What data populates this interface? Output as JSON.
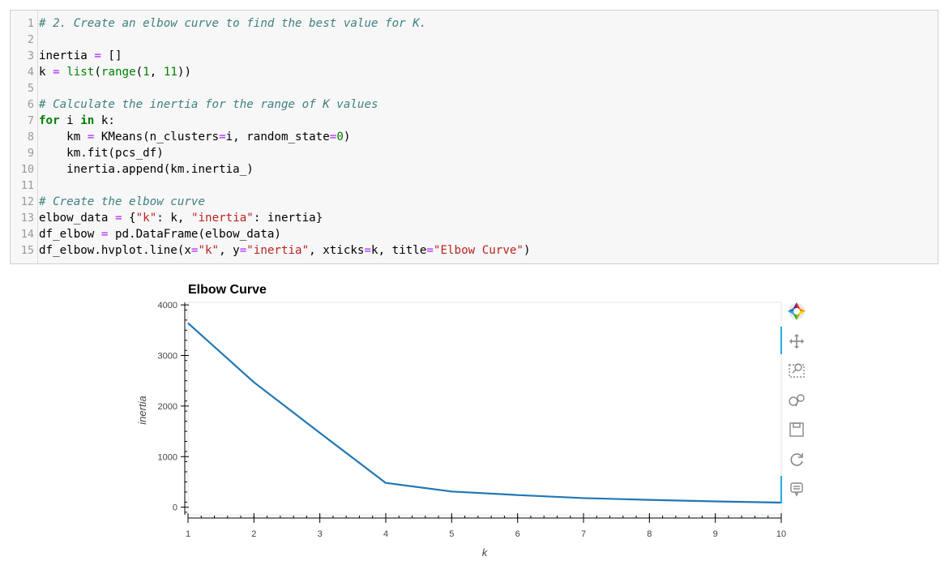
{
  "code": {
    "lines": [
      [
        {
          "t": "# 2. Create an elbow curve to find the best value for K.",
          "c": "cm-comment"
        }
      ],
      [],
      [
        {
          "t": "inertia "
        },
        {
          "t": "=",
          "c": "cm-operator"
        },
        {
          "t": " []"
        }
      ],
      [
        {
          "t": "k "
        },
        {
          "t": "=",
          "c": "cm-operator"
        },
        {
          "t": " "
        },
        {
          "t": "list",
          "c": "cm-builtin"
        },
        {
          "t": "("
        },
        {
          "t": "range",
          "c": "cm-builtin"
        },
        {
          "t": "("
        },
        {
          "t": "1",
          "c": "cm-number"
        },
        {
          "t": ", "
        },
        {
          "t": "11",
          "c": "cm-number"
        },
        {
          "t": "))"
        }
      ],
      [],
      [
        {
          "t": "# Calculate the inertia for the range of K values",
          "c": "cm-comment"
        }
      ],
      [
        {
          "t": "for",
          "c": "cm-keyword"
        },
        {
          "t": " i "
        },
        {
          "t": "in",
          "c": "cm-keyword"
        },
        {
          "t": " k:"
        }
      ],
      [
        {
          "t": "    km "
        },
        {
          "t": "=",
          "c": "cm-operator"
        },
        {
          "t": " KMeans(n_clusters"
        },
        {
          "t": "=",
          "c": "cm-operator"
        },
        {
          "t": "i, random_state"
        },
        {
          "t": "=",
          "c": "cm-operator"
        },
        {
          "t": "0",
          "c": "cm-number"
        },
        {
          "t": ")"
        }
      ],
      [
        {
          "t": "    km.fit(pcs_df)"
        }
      ],
      [
        {
          "t": "    inertia.append(km.inertia_)"
        }
      ],
      [],
      [
        {
          "t": "# Create the elbow curve",
          "c": "cm-comment"
        }
      ],
      [
        {
          "t": "elbow_data "
        },
        {
          "t": "=",
          "c": "cm-operator"
        },
        {
          "t": " {"
        },
        {
          "t": "\"k\"",
          "c": "cm-string"
        },
        {
          "t": ": k, "
        },
        {
          "t": "\"inertia\"",
          "c": "cm-string"
        },
        {
          "t": ": inertia}"
        }
      ],
      [
        {
          "t": "df_elbow "
        },
        {
          "t": "=",
          "c": "cm-operator"
        },
        {
          "t": " pd.DataFrame(elbow_data)"
        }
      ],
      [
        {
          "t": "df_elbow.hvplot.line(x"
        },
        {
          "t": "=",
          "c": "cm-operator"
        },
        {
          "t": "\"k\"",
          "c": "cm-string"
        },
        {
          "t": ", y"
        },
        {
          "t": "=",
          "c": "cm-operator"
        },
        {
          "t": "\"inertia\"",
          "c": "cm-string"
        },
        {
          "t": ", xticks"
        },
        {
          "t": "=",
          "c": "cm-operator"
        },
        {
          "t": "k, title"
        },
        {
          "t": "=",
          "c": "cm-operator"
        },
        {
          "t": "\"Elbow Curve\"",
          "c": "cm-string"
        },
        {
          "t": ")"
        }
      ]
    ]
  },
  "toolbar": {
    "icons": [
      "bokeh-logo-icon",
      "pan-icon",
      "box-zoom-icon",
      "wheel-zoom-icon",
      "save-icon",
      "reset-icon",
      "hover-icon"
    ]
  },
  "chart_data": {
    "type": "line",
    "title": "Elbow Curve",
    "xlabel": "k",
    "ylabel": "inertia",
    "x": [
      1,
      2,
      3,
      4,
      5,
      6,
      7,
      8,
      9,
      10
    ],
    "series": [
      {
        "name": "inertia",
        "values": [
          3640,
          2470,
          1470,
          480,
          310,
          240,
          180,
          145,
          115,
          90
        ]
      }
    ],
    "xticks": [
      "1",
      "2",
      "3",
      "4",
      "5",
      "6",
      "7",
      "8",
      "9",
      "10"
    ],
    "yticks": [
      "0",
      "1000",
      "2000",
      "3000",
      "4000"
    ],
    "xlim": [
      1,
      10
    ],
    "ylim": [
      -150,
      4050
    ],
    "line_color": "#1f77b4"
  }
}
